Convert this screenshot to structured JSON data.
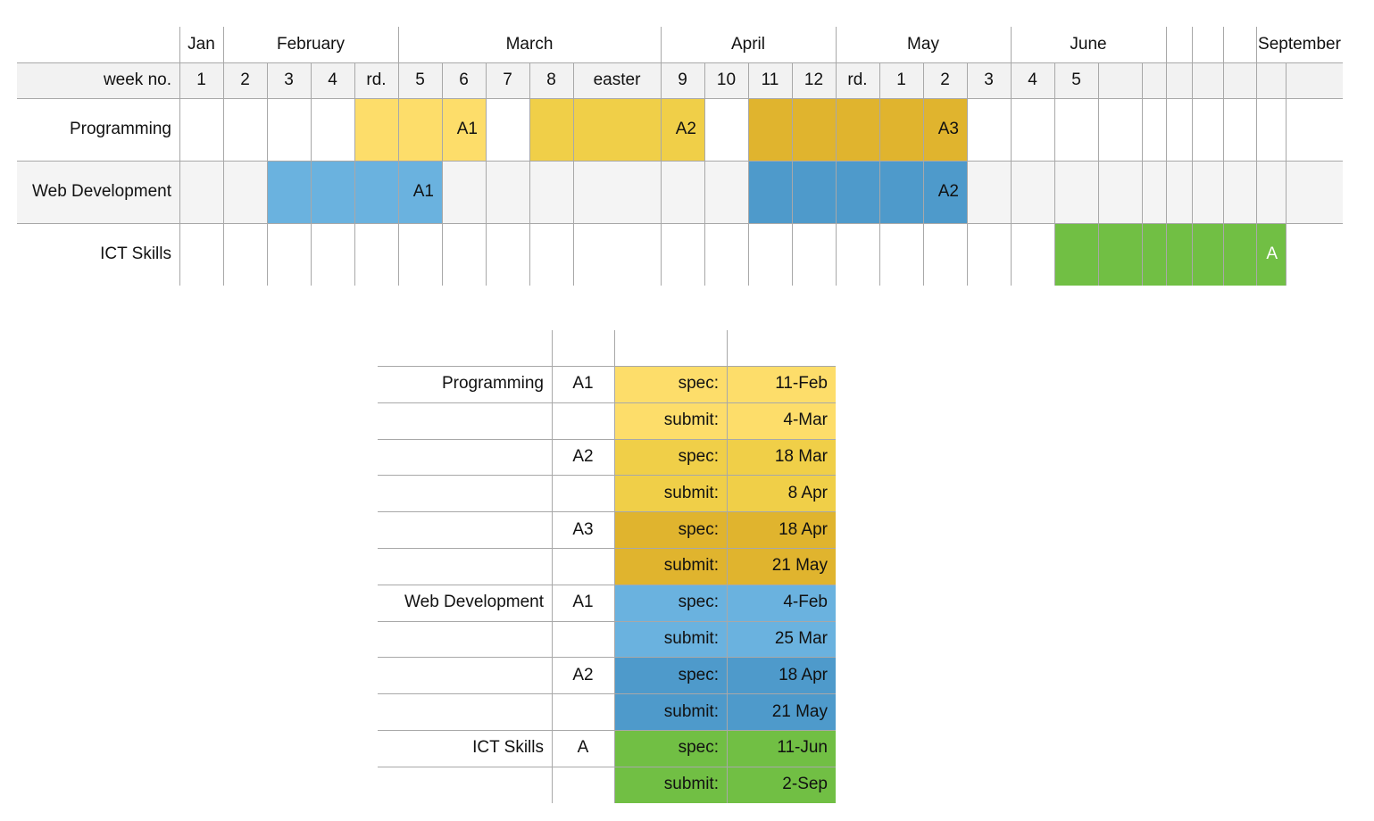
{
  "gantt": {
    "months": [
      {
        "label": "Jan"
      },
      {
        "label": "February"
      },
      {
        "label": "March"
      },
      {
        "label": "April"
      },
      {
        "label": "May"
      },
      {
        "label": "June"
      },
      {
        "label": ""
      },
      {
        "label": ""
      },
      {
        "label": ""
      },
      {
        "label": "September"
      }
    ],
    "week_row_label": "week no.",
    "weeks": [
      "1",
      "2",
      "3",
      "4",
      "rd.",
      "5",
      "6",
      "7",
      "8",
      "easter",
      "9",
      "10",
      "11",
      "12",
      "rd.",
      "1",
      "2",
      "3",
      "4",
      "5",
      "",
      "",
      "",
      "",
      "",
      ""
    ],
    "rows": [
      {
        "label": "Programming",
        "bars": [
          {
            "start": 4,
            "end": 6,
            "color": "#fddd6a",
            "marker": "A1"
          },
          {
            "start": 8,
            "end": 10,
            "color": "#f0cf48",
            "marker": "A2"
          },
          {
            "start": 12,
            "end": 16,
            "color": "#e0b42e",
            "marker": "A3"
          }
        ]
      },
      {
        "label": "Web Development",
        "bars": [
          {
            "start": 2,
            "end": 5,
            "color": "#6ab2df",
            "marker": "A1"
          },
          {
            "start": 12,
            "end": 16,
            "color": "#4e9acb",
            "marker": "A2"
          }
        ]
      },
      {
        "label": "ICT Skills",
        "bars": [
          {
            "start": 19,
            "end": 25,
            "color": "#71bf44",
            "marker": "A"
          }
        ]
      }
    ]
  },
  "deadlines": {
    "rows": [
      {
        "course": "Programming",
        "assignment": "A1",
        "type": "spec:",
        "date": "11-Feb",
        "color": "#fddd6a"
      },
      {
        "course": "",
        "assignment": "",
        "type": "submit:",
        "date": "4-Mar",
        "color": "#fddd6a"
      },
      {
        "course": "",
        "assignment": "A2",
        "type": "spec:",
        "date": "18 Mar",
        "color": "#f0cf48"
      },
      {
        "course": "",
        "assignment": "",
        "type": "submit:",
        "date": "8 Apr",
        "color": "#f0cf48"
      },
      {
        "course": "",
        "assignment": "A3",
        "type": "spec:",
        "date": "18 Apr",
        "color": "#e0b42e"
      },
      {
        "course": "",
        "assignment": "",
        "type": "submit:",
        "date": "21 May",
        "color": "#e0b42e"
      },
      {
        "course": "Web Development",
        "assignment": "A1",
        "type": "spec:",
        "date": "4-Feb",
        "color": "#6ab2df"
      },
      {
        "course": "",
        "assignment": "",
        "type": "submit:",
        "date": "25 Mar",
        "color": "#6ab2df"
      },
      {
        "course": "",
        "assignment": "A2",
        "type": "spec:",
        "date": "18 Apr",
        "color": "#4e9acb"
      },
      {
        "course": "",
        "assignment": "",
        "type": "submit:",
        "date": "21 May",
        "color": "#4e9acb"
      },
      {
        "course": "ICT Skills",
        "assignment": "A",
        "type": "spec:",
        "date": "11-Jun",
        "color": "#71bf44"
      },
      {
        "course": "",
        "assignment": "",
        "type": "submit:",
        "date": "2-Sep",
        "color": "#71bf44"
      }
    ]
  },
  "colors": {
    "grid_line": "#a8a8a8",
    "header_band": "#f2f2f2",
    "alt_row_band": "#f4f4f4"
  }
}
